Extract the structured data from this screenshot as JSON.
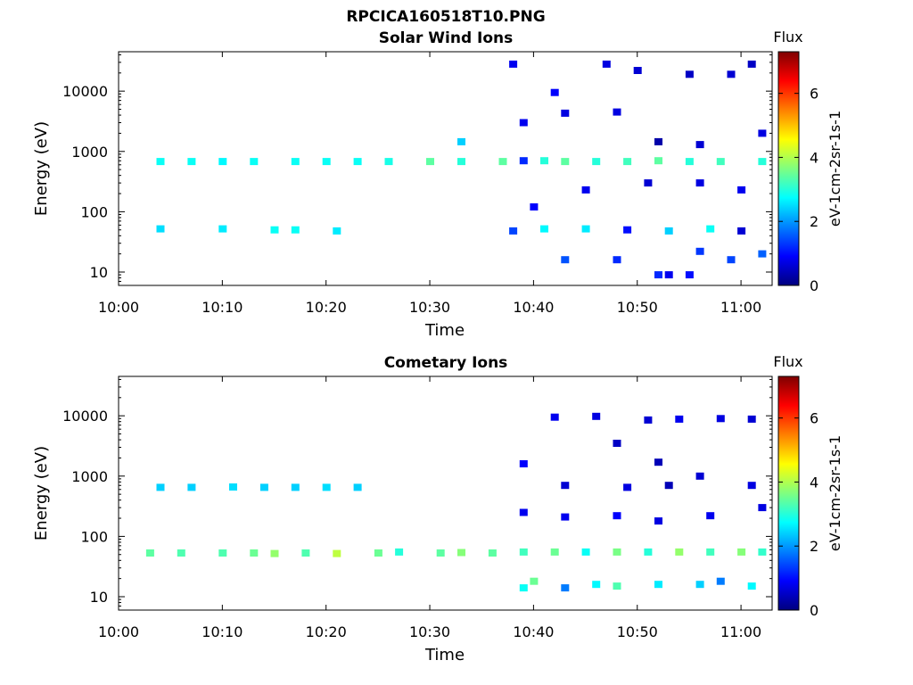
{
  "figure_title": "RPCICA160518T10.PNG",
  "chart_data": [
    {
      "type": "heatmap",
      "title": "Solar Wind Ions",
      "xlabel": "Time",
      "ylabel": "Energy (eV)",
      "yscale": "log",
      "xlim": [
        "10:00",
        "11:03"
      ],
      "ylim": [
        6,
        45000
      ],
      "x_ticks": [
        "10:00",
        "10:10",
        "10:20",
        "10:30",
        "10:40",
        "10:50",
        "11:00"
      ],
      "y_ticks": [
        "10",
        "100",
        "1000",
        "10000"
      ],
      "colorbar": {
        "label_top": "Flux",
        "label_side": "eV-1cm-2sr-1s-1",
        "ticks": [
          "0",
          "2",
          "4",
          "6"
        ],
        "range": [
          0,
          7.3
        ],
        "colormap": "jet"
      },
      "cells": [
        [
          "10:04",
          680,
          2.8
        ],
        [
          "10:07",
          680,
          2.8
        ],
        [
          "10:10",
          680,
          2.7
        ],
        [
          "10:13",
          680,
          2.8
        ],
        [
          "10:17",
          680,
          2.8
        ],
        [
          "10:20",
          680,
          2.8
        ],
        [
          "10:23",
          680,
          2.8
        ],
        [
          "10:26",
          680,
          2.9
        ],
        [
          "10:30",
          680,
          3.4
        ],
        [
          "10:33",
          680,
          3.0
        ],
        [
          "10:33",
          1450,
          2.4
        ],
        [
          "10:37",
          680,
          3.4
        ],
        [
          "10:39",
          700,
          1.2
        ],
        [
          "10:41",
          700,
          3.0
        ],
        [
          "10:43",
          680,
          3.4
        ],
        [
          "10:46",
          680,
          3.0
        ],
        [
          "10:49",
          680,
          3.2
        ],
        [
          "10:52",
          700,
          3.4
        ],
        [
          "10:55",
          680,
          3.0
        ],
        [
          "10:58",
          680,
          3.2
        ],
        [
          "11:02",
          680,
          3.0
        ],
        [
          "10:38",
          28000,
          0.8
        ],
        [
          "10:42",
          9500,
          0.9
        ],
        [
          "10:47",
          28000,
          0.7
        ],
        [
          "10:50",
          22000,
          0.6
        ],
        [
          "10:55",
          19000,
          0.5
        ],
        [
          "10:59",
          19000,
          0.6
        ],
        [
          "11:01",
          28000,
          0.5
        ],
        [
          "10:39",
          3000,
          0.8
        ],
        [
          "10:43",
          4300,
          0.7
        ],
        [
          "10:48",
          4500,
          0.7
        ],
        [
          "10:52",
          1450,
          0.3
        ],
        [
          "10:56",
          1300,
          0.6
        ],
        [
          "11:02",
          2000,
          0.7
        ],
        [
          "10:40",
          120,
          0.9
        ],
        [
          "10:45",
          230,
          0.8
        ],
        [
          "10:51",
          300,
          0.6
        ],
        [
          "10:56",
          300,
          0.7
        ],
        [
          "11:00",
          230,
          0.8
        ],
        [
          "10:04",
          52,
          2.5
        ],
        [
          "10:10",
          52,
          2.6
        ],
        [
          "10:15",
          50,
          2.8
        ],
        [
          "10:17",
          50,
          2.8
        ],
        [
          "10:21",
          48,
          2.6
        ],
        [
          "10:38",
          48,
          1.4
        ],
        [
          "10:41",
          52,
          2.7
        ],
        [
          "10:45",
          52,
          2.6
        ],
        [
          "10:49",
          50,
          1.0
        ],
        [
          "10:53",
          48,
          2.4
        ],
        [
          "10:57",
          52,
          2.8
        ],
        [
          "11:00",
          48,
          0.6
        ],
        [
          "10:43",
          16,
          1.5
        ],
        [
          "10:48",
          16,
          1.2
        ],
        [
          "10:52",
          9,
          1.2
        ],
        [
          "10:53",
          9,
          0.8
        ],
        [
          "10:55",
          9,
          1.0
        ],
        [
          "10:56",
          22,
          1.3
        ],
        [
          "10:59",
          16,
          1.4
        ],
        [
          "11:02",
          20,
          1.6
        ]
      ]
    },
    {
      "type": "heatmap",
      "title": "Cometary Ions",
      "xlabel": "Time",
      "ylabel": "Energy (eV)",
      "yscale": "log",
      "xlim": [
        "10:00",
        "11:03"
      ],
      "ylim": [
        6,
        45000
      ],
      "x_ticks": [
        "10:00",
        "10:10",
        "10:20",
        "10:30",
        "10:40",
        "10:50",
        "11:00"
      ],
      "y_ticks": [
        "10",
        "100",
        "1000",
        "10000"
      ],
      "colorbar": {
        "label_top": "Flux",
        "label_side": "eV-1cm-2sr-1s-1",
        "ticks": [
          "0",
          "2",
          "4",
          "6"
        ],
        "range": [
          0,
          7.3
        ],
        "colormap": "jet"
      },
      "cells": [
        [
          "10:04",
          650,
          2.4
        ],
        [
          "10:07",
          650,
          2.4
        ],
        [
          "10:11",
          660,
          2.5
        ],
        [
          "10:14",
          650,
          2.4
        ],
        [
          "10:17",
          650,
          2.4
        ],
        [
          "10:20",
          650,
          2.5
        ],
        [
          "10:23",
          650,
          2.4
        ],
        [
          "10:03",
          53,
          3.4
        ],
        [
          "10:06",
          53,
          3.3
        ],
        [
          "10:10",
          53,
          3.3
        ],
        [
          "10:13",
          53,
          3.5
        ],
        [
          "10:15",
          52,
          3.8
        ],
        [
          "10:18",
          53,
          3.3
        ],
        [
          "10:21",
          52,
          4.1
        ],
        [
          "10:25",
          53,
          3.5
        ],
        [
          "10:27",
          55,
          3.0
        ],
        [
          "10:31",
          53,
          3.4
        ],
        [
          "10:33",
          54,
          3.7
        ],
        [
          "10:36",
          53,
          3.4
        ],
        [
          "10:39",
          55,
          3.2
        ],
        [
          "10:42",
          55,
          3.5
        ],
        [
          "10:45",
          55,
          2.8
        ],
        [
          "10:48",
          55,
          3.6
        ],
        [
          "10:51",
          55,
          3.0
        ],
        [
          "10:54",
          55,
          3.8
        ],
        [
          "10:57",
          55,
          3.2
        ],
        [
          "11:00",
          55,
          3.7
        ],
        [
          "11:02",
          55,
          3.1
        ],
        [
          "10:42",
          9500,
          0.8
        ],
        [
          "10:46",
          9800,
          0.7
        ],
        [
          "10:51",
          8500,
          0.6
        ],
        [
          "10:54",
          8800,
          0.8
        ],
        [
          "10:58",
          9000,
          0.7
        ],
        [
          "11:01",
          8800,
          0.6
        ],
        [
          "10:48",
          3500,
          0.5
        ],
        [
          "10:52",
          1700,
          0.4
        ],
        [
          "10:39",
          1600,
          0.9
        ],
        [
          "10:43",
          700,
          0.6
        ],
        [
          "10:49",
          650,
          0.7
        ],
        [
          "10:53",
          700,
          0.4
        ],
        [
          "10:56",
          1000,
          0.6
        ],
        [
          "11:01",
          700,
          0.7
        ],
        [
          "10:39",
          250,
          0.8
        ],
        [
          "10:43",
          210,
          0.8
        ],
        [
          "10:48",
          220,
          0.9
        ],
        [
          "10:52",
          180,
          0.7
        ],
        [
          "10:57",
          220,
          0.8
        ],
        [
          "11:02",
          300,
          0.7
        ],
        [
          "10:39",
          14,
          2.8
        ],
        [
          "10:40",
          18,
          3.5
        ],
        [
          "10:43",
          14,
          1.8
        ],
        [
          "10:46",
          16,
          2.7
        ],
        [
          "10:48",
          15,
          3.3
        ],
        [
          "10:52",
          16,
          2.6
        ],
        [
          "10:56",
          16,
          2.4
        ],
        [
          "10:58",
          18,
          1.8
        ],
        [
          "11:01",
          15,
          2.7
        ]
      ]
    }
  ]
}
